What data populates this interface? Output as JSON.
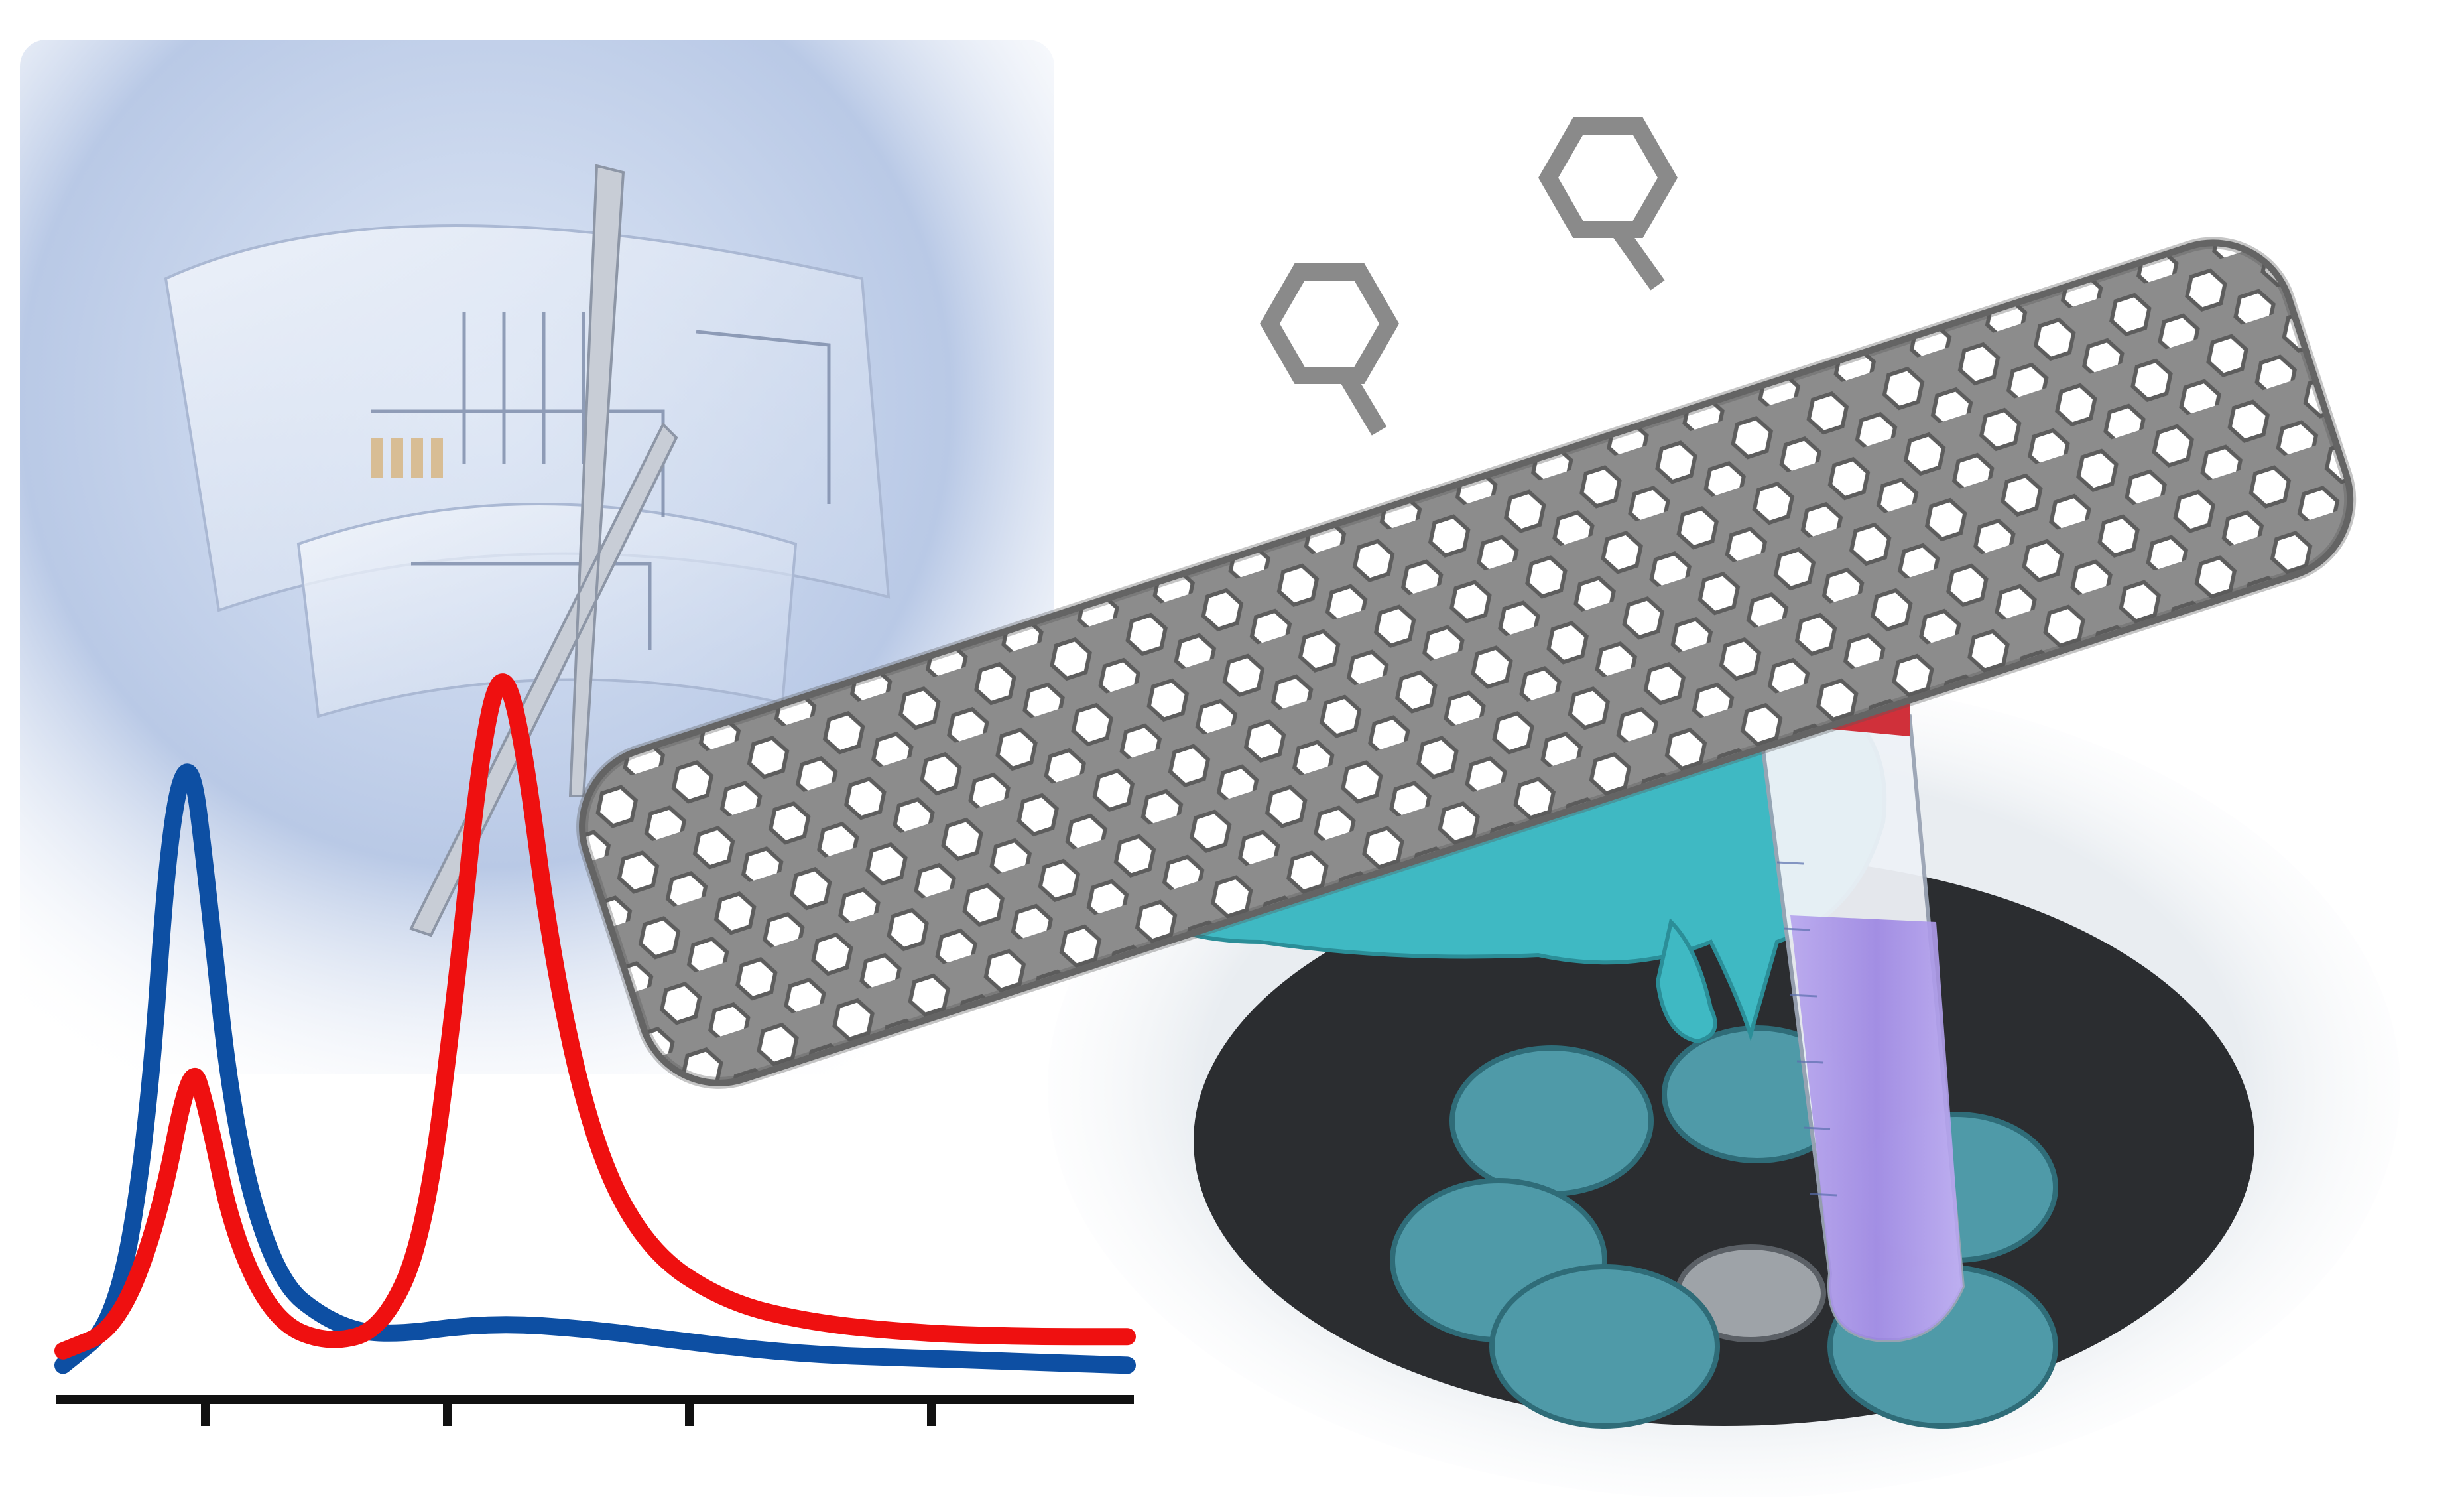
{
  "colors": {
    "background": "#ffffff",
    "panel_blue": "#b9c9e6",
    "blue_trace": "#0d4fa3",
    "red_trace": "#ef1010",
    "axis": "#111111",
    "nanotube": "#8a8a8a",
    "nanotube_shadow": "#5f5f5f",
    "glove": "#3fb9c3",
    "tube_liquid": "#a48ee6",
    "rotor_cups": "#4f9aa8",
    "centrifuge_body": "#eceff2",
    "centrifuge_well": "#2b2d30",
    "cap": "#d0303a"
  },
  "icons": [
    "flexible-electronics-film-icon",
    "carbon-nanotube-model-icon",
    "centrifuge-icon",
    "gloved-hand-icon",
    "centrifuge-tube-icon"
  ],
  "chart_data": {
    "type": "line",
    "axis_ticks": 4,
    "series": [
      {
        "color": "blue",
        "points": [
          [
            0,
            0.02
          ],
          [
            0.05,
            0.08
          ],
          [
            0.08,
            0.35
          ],
          [
            0.1,
            0.78
          ],
          [
            0.12,
            0.88
          ],
          [
            0.135,
            0.7
          ],
          [
            0.16,
            0.35
          ],
          [
            0.2,
            0.14
          ],
          [
            0.25,
            0.08
          ],
          [
            0.3,
            0.06
          ],
          [
            0.4,
            0.08
          ],
          [
            0.5,
            0.07
          ],
          [
            0.6,
            0.05
          ],
          [
            0.7,
            0.035
          ],
          [
            0.8,
            0.03
          ],
          [
            0.9,
            0.025
          ],
          [
            1.0,
            0.02
          ]
        ]
      },
      {
        "color": "red",
        "points": [
          [
            0,
            0.04
          ],
          [
            0.05,
            0.07
          ],
          [
            0.09,
            0.22
          ],
          [
            0.12,
            0.45
          ],
          [
            0.135,
            0.38
          ],
          [
            0.16,
            0.2
          ],
          [
            0.2,
            0.08
          ],
          [
            0.25,
            0.05
          ],
          [
            0.3,
            0.07
          ],
          [
            0.34,
            0.2
          ],
          [
            0.37,
            0.55
          ],
          [
            0.39,
            0.85
          ],
          [
            0.41,
            1.0
          ],
          [
            0.43,
            0.92
          ],
          [
            0.46,
            0.58
          ],
          [
            0.5,
            0.32
          ],
          [
            0.55,
            0.18
          ],
          [
            0.62,
            0.11
          ],
          [
            0.7,
            0.08
          ],
          [
            0.8,
            0.065
          ],
          [
            0.9,
            0.06
          ],
          [
            1.0,
            0.06
          ]
        ]
      }
    ]
  }
}
